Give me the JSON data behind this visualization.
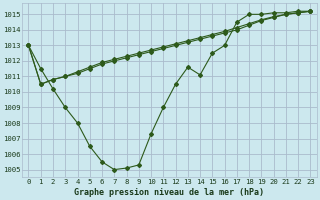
{
  "background_color": "#cce8ee",
  "grid_color": "#aabbcc",
  "line_color": "#2d5a1b",
  "hours": [
    0,
    1,
    2,
    3,
    4,
    5,
    6,
    7,
    8,
    9,
    10,
    11,
    12,
    13,
    14,
    15,
    16,
    17,
    18,
    19,
    20,
    21,
    22,
    23
  ],
  "series1": [
    1013.0,
    1011.5,
    1010.2,
    1009.0,
    1008.0,
    1006.5,
    1005.5,
    1005.0,
    1005.1,
    1005.3,
    1007.3,
    1009.0,
    1010.5,
    1011.6,
    1011.1,
    1012.5,
    1013.0,
    1014.5,
    1015.0,
    1015.0,
    1015.1,
    1015.1,
    1015.2,
    1015.2
  ],
  "series2": [
    1013.0,
    1010.5,
    1010.8,
    1011.0,
    1011.2,
    1011.5,
    1011.8,
    1012.0,
    1012.2,
    1012.4,
    1012.6,
    1012.8,
    1013.0,
    1013.2,
    1013.4,
    1013.6,
    1013.8,
    1014.0,
    1014.3,
    1014.6,
    1014.8,
    1015.0,
    1015.1,
    1015.2
  ],
  "series3": [
    1013.0,
    1010.5,
    1010.8,
    1011.0,
    1011.3,
    1011.6,
    1011.9,
    1012.1,
    1012.3,
    1012.5,
    1012.7,
    1012.9,
    1013.1,
    1013.3,
    1013.5,
    1013.7,
    1013.9,
    1014.15,
    1014.4,
    1014.65,
    1014.85,
    1015.0,
    1015.1,
    1015.2
  ],
  "ylim": [
    1004.5,
    1015.7
  ],
  "yticks": [
    1005,
    1006,
    1007,
    1008,
    1009,
    1010,
    1011,
    1012,
    1013,
    1014,
    1015
  ],
  "xlabel": "Graphe pression niveau de la mer (hPa)",
  "marker": "D",
  "marker_size": 2.0,
  "line_width": 0.8
}
